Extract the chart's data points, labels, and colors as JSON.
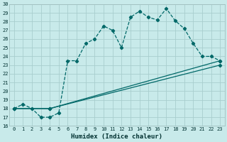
{
  "xlabel": "Humidex (Indice chaleur)",
  "xlim": [
    -0.5,
    23.5
  ],
  "ylim": [
    16,
    30
  ],
  "xticks": [
    0,
    1,
    2,
    3,
    4,
    5,
    6,
    7,
    8,
    9,
    10,
    11,
    12,
    13,
    14,
    15,
    16,
    17,
    18,
    19,
    20,
    21,
    22,
    23
  ],
  "yticks": [
    16,
    17,
    18,
    19,
    20,
    21,
    22,
    23,
    24,
    25,
    26,
    27,
    28,
    29,
    30
  ],
  "bg_color": "#c8eaea",
  "grid_color": "#a8cece",
  "line_color": "#006868",
  "line1_x": [
    0,
    1,
    2,
    3,
    4,
    5,
    6,
    7,
    8,
    9,
    10,
    11,
    12,
    13,
    14,
    15,
    16,
    17,
    18,
    19,
    20,
    21,
    22,
    23
  ],
  "line1_y": [
    18,
    18.5,
    18,
    17,
    17,
    17.5,
    23.5,
    23.5,
    25.5,
    26,
    27.5,
    27,
    25,
    28.5,
    29.2,
    28.5,
    28.2,
    29.5,
    28.1,
    27.2,
    25.5,
    24,
    24,
    23.5
  ],
  "line2_x": [
    0,
    4,
    23
  ],
  "line2_y": [
    18,
    18,
    23.5
  ],
  "line3_x": [
    0,
    4,
    23
  ],
  "line3_y": [
    18,
    18,
    23
  ]
}
